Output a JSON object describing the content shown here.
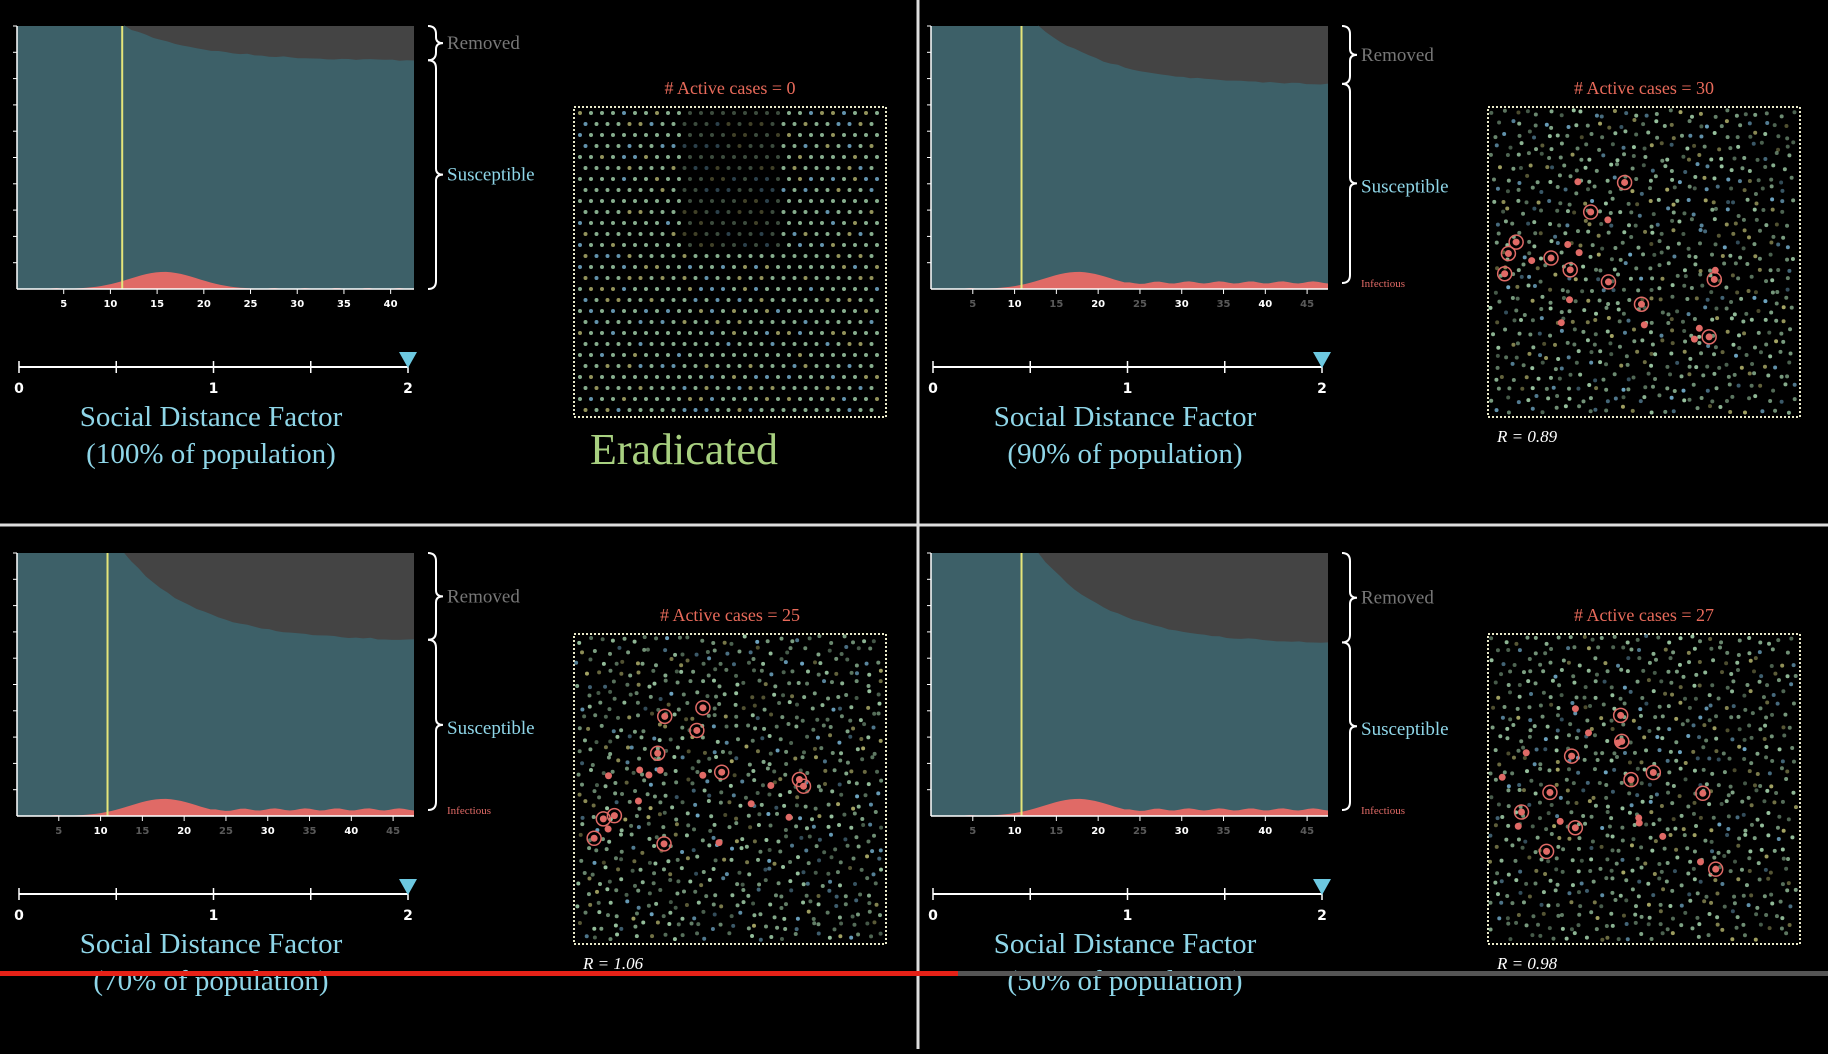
{
  "panels": [
    {
      "removed": "Removed",
      "susceptible": "Susceptible",
      "x_ticks": [
        "5",
        "10",
        "15",
        "20",
        "25",
        "30",
        "35",
        "40"
      ],
      "slider_ticks": [
        "0",
        "1",
        "2"
      ],
      "factor": "Social Distance Factor",
      "population": "(100% of population)",
      "active_cases": "# Active cases = 0",
      "status": "Eradicated"
    },
    {
      "removed": "Removed",
      "susceptible": "Susceptible",
      "infectious": "Infectious",
      "x_ticks": [
        "5",
        "10",
        "15",
        "20",
        "25",
        "30",
        "35",
        "40",
        "45"
      ],
      "slider_ticks": [
        "0",
        "1",
        "2"
      ],
      "factor": "Social Distance Factor",
      "population": "(90% of population)",
      "active_cases": "# Active cases = 30",
      "r_value": "R = 0.89"
    },
    {
      "removed": "Removed",
      "susceptible": "Susceptible",
      "infectious": "Infectious",
      "x_ticks": [
        "5",
        "10",
        "15",
        "20",
        "25",
        "30",
        "35",
        "40",
        "45"
      ],
      "slider_ticks": [
        "0",
        "1",
        "2"
      ],
      "factor": "Social Distance Factor",
      "population": "(70% of population)",
      "active_cases": "# Active cases = 25",
      "r_value": "R = 1.06"
    },
    {
      "removed": "Removed",
      "susceptible": "Susceptible",
      "infectious": "Infectious",
      "x_ticks": [
        "5",
        "10",
        "15",
        "20",
        "25",
        "30",
        "35",
        "40",
        "45"
      ],
      "slider_ticks": [
        "0",
        "1",
        "2"
      ],
      "factor": "Social Distance Factor",
      "population": "(50% of population)",
      "active_cases": "# Active cases = 27",
      "r_value": "R = 0.98"
    }
  ]
}
